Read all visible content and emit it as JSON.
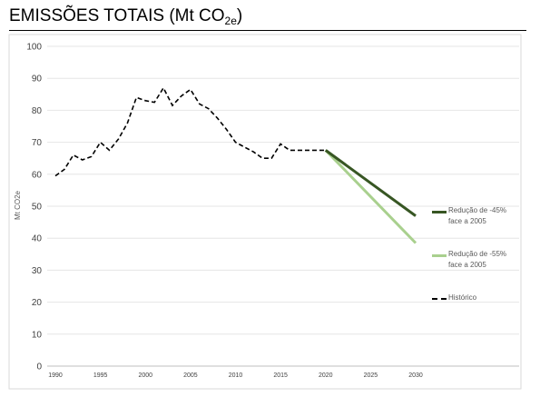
{
  "header": {
    "title_main": "EMISSÕES TOTAIS (Mt CO",
    "title_sub": "2e",
    "title_end": ")"
  },
  "chart_data": {
    "type": "line",
    "title": "EMISSÕES TOTAIS (Mt CO2e)",
    "xlabel": "",
    "ylabel": "Mt CO2e",
    "xlim": [
      1990,
      2032
    ],
    "ylim": [
      0,
      100
    ],
    "x_ticks": [
      1990,
      1995,
      2000,
      2005,
      2010,
      2015,
      2020,
      2025,
      2030
    ],
    "y_ticks": [
      0,
      10,
      20,
      30,
      40,
      50,
      60,
      70,
      80,
      90,
      100
    ],
    "grid": "horizontal",
    "legend_position": "right",
    "series": [
      {
        "name": "Redução de -45% face a 2005",
        "color": "#375623",
        "style": "solid",
        "x": [
          2020,
          2030
        ],
        "y": [
          67.5,
          47
        ]
      },
      {
        "name": "Redução de -55% face a 2005",
        "color": "#a9d08e",
        "style": "solid",
        "x": [
          2020,
          2030
        ],
        "y": [
          67.5,
          38.5
        ]
      },
      {
        "name": "Histórico",
        "color": "#000000",
        "style": "dashed",
        "x": [
          1990,
          1991,
          1992,
          1993,
          1994,
          1995,
          1996,
          1997,
          1998,
          1999,
          2000,
          2001,
          2002,
          2003,
          2004,
          2005,
          2006,
          2007,
          2008,
          2009,
          2010,
          2011,
          2012,
          2013,
          2014,
          2015,
          2016,
          2017,
          2018,
          2019,
          2020
        ],
        "y": [
          59.5,
          61.5,
          66,
          64.5,
          65.5,
          70,
          67.5,
          71,
          76,
          84,
          83,
          82.5,
          87,
          81.5,
          84.5,
          86.5,
          82,
          80.5,
          77.5,
          74,
          70,
          68.5,
          67,
          65,
          65,
          69.5,
          67.5,
          67.5,
          67.5,
          67.5,
          67.5
        ]
      }
    ]
  }
}
